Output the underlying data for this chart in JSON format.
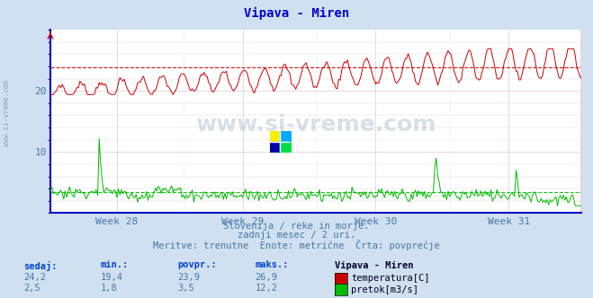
{
  "title": "Vipava - Miren",
  "title_color": "#0000cc",
  "bg_color": "#d0e0f0",
  "plot_bg_color": "#ffffff",
  "grid_color": "#c8d8e8",
  "text_color": "#4477aa",
  "week_labels": [
    "Week 28",
    "Week 29",
    "Week 30",
    "Week 31"
  ],
  "ylim": [
    0,
    30
  ],
  "yticks": [
    10,
    20
  ],
  "temp_color": "#cc0000",
  "flow_color": "#00bb00",
  "avg_temp": 23.9,
  "avg_flow": 3.5,
  "n_points": 360,
  "subtitle1": "Slovenija / reke in morje.",
  "subtitle2": "zadnji mesec / 2 uri.",
  "subtitle3": "Meritve: trenutne  Enote: metrične  Črta: povprečje",
  "legend_title": "Vipava - Miren",
  "label_sedaj": "sedaj:",
  "label_min": "min.:",
  "label_povpr": "povpr.:",
  "label_maks": "maks.:",
  "temp_sedaj": "24,2",
  "temp_min": "19,4",
  "temp_povpr": "23,9",
  "temp_maks": "26,9",
  "flow_sedaj": "2,5",
  "flow_min": "1,8",
  "flow_povpr": "3,5",
  "flow_maks": "12,2",
  "temp_label": "temperatura[C]",
  "flow_label": "pretok[m3/s]",
  "watermark": "www.si-vreme.com",
  "spine_color": "#0000cc",
  "axis_color": "#4477aa"
}
